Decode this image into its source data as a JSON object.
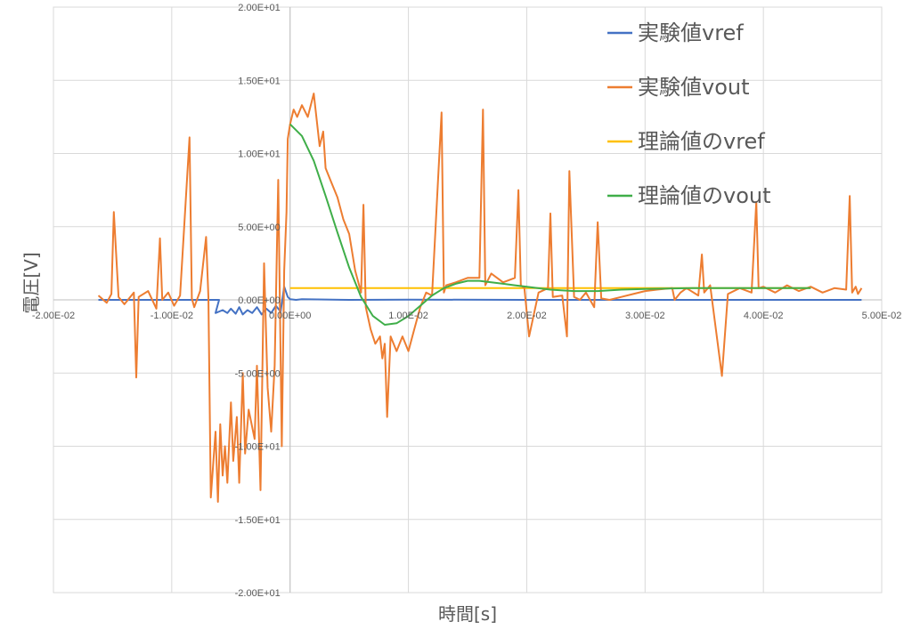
{
  "chart_data": {
    "type": "line",
    "title": "",
    "xlabel": "時間[s]",
    "ylabel": "電圧[V]",
    "xlim": [
      -0.02,
      0.05
    ],
    "ylim": [
      -20,
      20
    ],
    "x_ticks": [
      -0.02,
      -0.01,
      0.0,
      0.01,
      0.02,
      0.03,
      0.04,
      0.05
    ],
    "x_tick_labels": [
      "-2.00E-02",
      "-1.00E-02",
      "0.00E+00",
      "1.00E-02",
      "2.00E-02",
      "3.00E-02",
      "4.00E-02",
      "5.00E-02"
    ],
    "y_ticks": [
      20,
      15,
      10,
      5,
      0,
      -5,
      -10,
      -15,
      -20
    ],
    "y_tick_labels": [
      "2.00E+01",
      "1.50E+01",
      "1.00E+01",
      "5.00E+00",
      "0.00E+00",
      "-5.00E+00",
      "-1.00E+01",
      "-1.50E+01",
      "-2.00E+01"
    ],
    "grid": true,
    "legend_position": "top-right",
    "series": [
      {
        "name": "実験値vref",
        "color": "#4472C4",
        "x": [
          -0.0162,
          -0.006,
          -0.0063,
          -0.0057,
          -0.0053,
          -0.005,
          -0.0046,
          -0.0043,
          -0.004,
          -0.0036,
          -0.0032,
          -0.0028,
          -0.0024,
          -0.002,
          -0.0016,
          -0.0012,
          -0.0008,
          -0.0005,
          -0.0002,
          0.0,
          0.0005,
          0.001,
          0.005,
          0.01,
          0.02,
          0.03,
          0.04,
          0.0483
        ],
        "y": [
          0.0,
          0.0,
          -0.9,
          -0.7,
          -0.9,
          -0.6,
          -0.95,
          -0.5,
          -1.0,
          -0.7,
          -0.9,
          -0.5,
          -1.0,
          -0.6,
          -0.9,
          -0.4,
          -0.8,
          0.9,
          0.2,
          0.05,
          0.0,
          0.05,
          0.0,
          0.02,
          0.0,
          0.0,
          0.0,
          0.0
        ]
      },
      {
        "name": "実験値vout",
        "color": "#ED7D31",
        "x": [
          -0.0162,
          -0.0155,
          -0.0151,
          -0.0149,
          -0.0145,
          -0.014,
          -0.0132,
          -0.013,
          -0.0128,
          -0.012,
          -0.0113,
          -0.011,
          -0.0108,
          -0.0103,
          -0.0098,
          -0.0093,
          -0.0085,
          -0.0083,
          -0.0081,
          -0.0076,
          -0.0071,
          -0.0069,
          -0.0067,
          -0.0063,
          -0.0061,
          -0.0059,
          -0.0057,
          -0.0055,
          -0.0053,
          -0.005,
          -0.0048,
          -0.0045,
          -0.0043,
          -0.004,
          -0.0038,
          -0.0035,
          -0.003,
          -0.0028,
          -0.0025,
          -0.0022,
          -0.0019,
          -0.0016,
          -0.0013,
          -0.001,
          -0.0007,
          -0.0005,
          -0.0003,
          -0.0002,
          0.0,
          0.0003,
          0.0006,
          0.001,
          0.0015,
          0.002,
          0.0025,
          0.0028,
          0.003,
          0.0035,
          0.004,
          0.0045,
          0.005,
          0.0055,
          0.006,
          0.0062,
          0.0064,
          0.0068,
          0.0072,
          0.0076,
          0.0078,
          0.008,
          0.0082,
          0.0085,
          0.009,
          0.0095,
          0.01,
          0.0105,
          0.011,
          0.0115,
          0.012,
          0.0128,
          0.013,
          0.0132,
          0.014,
          0.015,
          0.016,
          0.0163,
          0.0165,
          0.017,
          0.018,
          0.019,
          0.0193,
          0.0195,
          0.0198,
          0.0202,
          0.021,
          0.0218,
          0.022,
          0.0222,
          0.023,
          0.0234,
          0.0236,
          0.024,
          0.0245,
          0.025,
          0.0257,
          0.026,
          0.0263,
          0.027,
          0.028,
          0.029,
          0.03,
          0.031,
          0.0323,
          0.0325,
          0.033,
          0.0335,
          0.0345,
          0.0348,
          0.035,
          0.0355,
          0.0365,
          0.037,
          0.038,
          0.039,
          0.0394,
          0.0396,
          0.04,
          0.041,
          0.042,
          0.043,
          0.044,
          0.045,
          0.046,
          0.047,
          0.0473,
          0.0475,
          0.0478,
          0.048,
          0.0483
        ],
        "y": [
          0.3,
          -0.2,
          0.4,
          6.0,
          0.2,
          -0.3,
          0.5,
          -5.3,
          0.2,
          0.6,
          -0.6,
          4.2,
          0.0,
          0.5,
          -0.4,
          0.3,
          11.1,
          0.1,
          -0.5,
          0.6,
          4.3,
          0.2,
          -13.5,
          -9.0,
          -13.8,
          -8.5,
          -12.0,
          -10.0,
          -12.5,
          -7.0,
          -11.0,
          -8.0,
          -12.5,
          -5.0,
          -10.5,
          -7.5,
          -9.5,
          -4.5,
          -13.0,
          2.5,
          -6.0,
          -9.0,
          -4.5,
          8.2,
          -10.0,
          2.0,
          6.0,
          11.0,
          12.0,
          13.0,
          12.5,
          13.3,
          12.5,
          14.1,
          10.5,
          11.5,
          9.0,
          8.0,
          7.0,
          5.5,
          4.5,
          2.0,
          0.5,
          6.5,
          -0.5,
          -2.0,
          -3.0,
          -2.5,
          -4.0,
          -3.0,
          -8.0,
          -2.5,
          -3.5,
          -2.5,
          -3.5,
          -2.0,
          -0.5,
          0.5,
          0.3,
          12.8,
          0.5,
          1.0,
          1.2,
          1.5,
          1.5,
          13.0,
          1.0,
          1.8,
          1.2,
          1.5,
          7.5,
          1.0,
          0.8,
          -2.5,
          0.5,
          0.8,
          5.9,
          0.2,
          0.3,
          -2.5,
          8.8,
          0.2,
          0.0,
          0.5,
          -0.5,
          5.3,
          0.1,
          0.0,
          0.2,
          0.4,
          0.6,
          0.7,
          0.8,
          0.0,
          0.5,
          0.8,
          0.3,
          3.1,
          0.5,
          1.0,
          -5.2,
          0.4,
          0.8,
          0.5,
          6.7,
          0.8,
          0.9,
          0.5,
          1.0,
          0.6,
          0.9,
          0.5,
          0.8,
          0.7,
          7.1,
          0.5,
          0.9,
          0.4,
          0.8
        ]
      },
      {
        "name": "理論値のvref",
        "color": "#FFC000",
        "x": [
          0.0,
          0.044
        ],
        "y": [
          0.8,
          0.8
        ]
      },
      {
        "name": "理論値のvout",
        "color": "#3FAE49",
        "x": [
          0.0,
          0.001,
          0.002,
          0.003,
          0.004,
          0.005,
          0.006,
          0.007,
          0.008,
          0.009,
          0.01,
          0.011,
          0.012,
          0.013,
          0.014,
          0.015,
          0.016,
          0.017,
          0.018,
          0.019,
          0.02,
          0.022,
          0.024,
          0.026,
          0.028,
          0.03,
          0.034,
          0.038,
          0.044
        ],
        "y": [
          12.0,
          11.2,
          9.5,
          7.1,
          4.6,
          2.2,
          0.2,
          -1.1,
          -1.7,
          -1.6,
          -1.1,
          -0.4,
          0.3,
          0.8,
          1.1,
          1.3,
          1.3,
          1.2,
          1.1,
          1.0,
          0.9,
          0.7,
          0.6,
          0.6,
          0.7,
          0.75,
          0.8,
          0.8,
          0.8
        ]
      }
    ]
  }
}
